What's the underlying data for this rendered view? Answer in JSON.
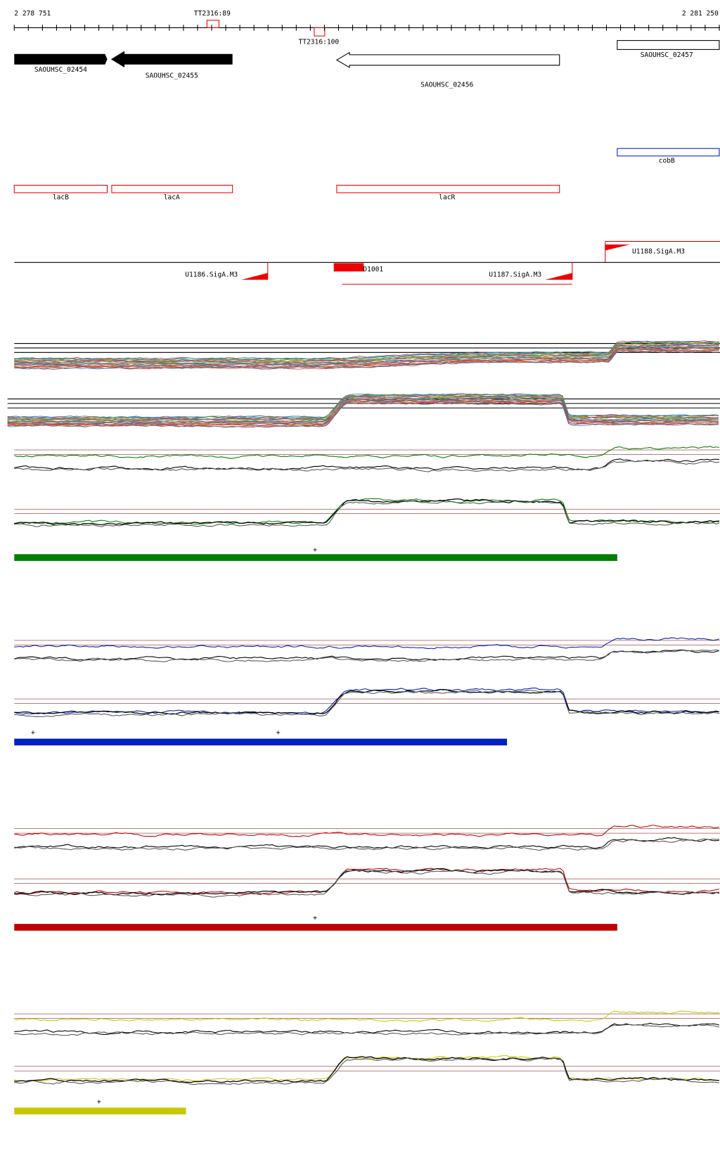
{
  "ruler": {
    "start": "2 278 751",
    "end": "2 281 250",
    "markers": [
      "TT2316:89",
      "TT2316:100"
    ]
  },
  "genes": [
    "SAOUHSC_02454",
    "SAOUHSC_02455",
    "SAOUHSC_02456",
    "SAOUHSC_02457"
  ],
  "features": [
    "cobB",
    "lacB",
    "lacA",
    "lacR"
  ],
  "promoters": [
    "U1186.SigA.M3",
    "D1001",
    "U1187.SigA.M3",
    "U1188.SigA.M3"
  ],
  "tracks": [
    {
      "marks": [
        "+"
      ]
    },
    {
      "marks": [
        "+",
        "+"
      ]
    },
    {
      "marks": [
        "+"
      ]
    },
    {
      "marks": [
        "+"
      ]
    }
  ]
}
